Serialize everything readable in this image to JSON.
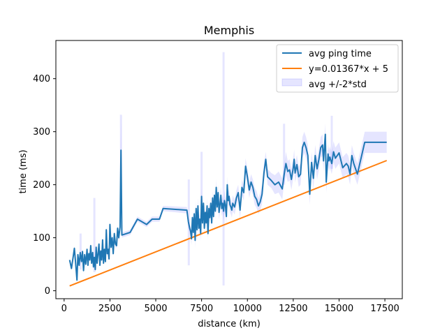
{
  "chart_data": {
    "type": "line",
    "title": "Memphis",
    "xlabel": "distance (km)",
    "ylabel": "time (ms)",
    "xlim": [
      -450,
      18450
    ],
    "ylim": [
      -15,
      472
    ],
    "xticks": [
      0,
      2500,
      5000,
      7500,
      10000,
      12500,
      15000,
      17500
    ],
    "xtick_labels": [
      "0",
      "2500",
      "5000",
      "7500",
      "10000",
      "12500",
      "15000",
      "17500"
    ],
    "yticks": [
      0,
      100,
      200,
      300,
      400
    ],
    "ytick_labels": [
      "0",
      "100",
      "200",
      "300",
      "400"
    ],
    "grid": false,
    "legend_position": "top-right",
    "colors": {
      "avg": "#1f77b4",
      "fit": "#ff7f0e",
      "band": "#0000ff"
    },
    "series": [
      {
        "name": "avg ping time",
        "x": [
          300,
          400,
          500,
          560,
          620,
          700,
          750,
          820,
          880,
          950,
          1000,
          1060,
          1120,
          1180,
          1250,
          1300,
          1350,
          1400,
          1450,
          1500,
          1560,
          1600,
          1650,
          1700,
          1750,
          1800,
          1850,
          1900,
          1950,
          2000,
          2050,
          2100,
          2150,
          2200,
          2250,
          2300,
          2350,
          2400,
          2450,
          2500,
          2560,
          2620,
          2680,
          2740,
          2800,
          2860,
          2920,
          2980,
          3050,
          3100,
          3150,
          3600,
          4000,
          4500,
          4800,
          5200,
          5400,
          6700,
          6780,
          6850,
          6900,
          6950,
          7000,
          7050,
          7100,
          7150,
          7200,
          7250,
          7300,
          7350,
          7400,
          7450,
          7500,
          7550,
          7600,
          7650,
          7700,
          7750,
          7800,
          7850,
          7900,
          7950,
          8000,
          8050,
          8100,
          8150,
          8200,
          8250,
          8300,
          8350,
          8400,
          8450,
          8500,
          8550,
          8600,
          8650,
          8700,
          8750,
          8800,
          8850,
          8900,
          8950,
          9000,
          9050,
          9100,
          9150,
          9200,
          9300,
          9400,
          9500,
          9600,
          9700,
          9800,
          9900,
          10000,
          10100,
          10200,
          10300,
          10400,
          10500,
          10600,
          10700,
          10800,
          10900,
          11000,
          11100,
          11300,
          11500,
          11700,
          11900,
          12000,
          12100,
          12200,
          12300,
          12400,
          12500,
          12550,
          12600,
          12700,
          12800,
          12900,
          13000,
          13100,
          13200,
          13300,
          13400,
          13500,
          13600,
          13700,
          13800,
          13900,
          14000,
          14100,
          14150,
          14250,
          14300,
          14400,
          14450,
          14500,
          14600,
          14700,
          14800,
          15000,
          15200,
          15400,
          15500,
          15600,
          15700,
          15800,
          16000,
          16400,
          17600
        ],
        "values": [
          58,
          42,
          65,
          80,
          55,
          20,
          68,
          48,
          72,
          55,
          74,
          38,
          68,
          50,
          78,
          48,
          70,
          58,
          85,
          52,
          72,
          45,
          63,
          40,
          82,
          52,
          70,
          88,
          48,
          75,
          58,
          96,
          52,
          78,
          55,
          115,
          70,
          78,
          60,
          125,
          82,
          100,
          70,
          108,
          88,
          85,
          118,
          100,
          120,
          265,
          105,
          110,
          135,
          125,
          135,
          135,
          155,
          152,
          130,
          118,
          112,
          98,
          138,
          110,
          145,
          95,
          155,
          115,
          160,
          118,
          135,
          108,
          178,
          128,
          165,
          118,
          148,
          128,
          160,
          108,
          155,
          138,
          165,
          128,
          175,
          140,
          180,
          150,
          195,
          158,
          185,
          148,
          162,
          180,
          155,
          165,
          150,
          170,
          160,
          140,
          200,
          170,
          178,
          162,
          158,
          152,
          165,
          158,
          175,
          185,
          152,
          195,
          185,
          235,
          215,
          190,
          205,
          195,
          178,
          172,
          160,
          168,
          182,
          222,
          248,
          215,
          208,
          200,
          205,
          192,
          218,
          240,
          225,
          228,
          210,
          232,
          248,
          222,
          238,
          215,
          220,
          270,
          280,
          270,
          255,
          182,
          242,
          212,
          255,
          230,
          248,
          270,
          275,
          245,
          295,
          205,
          258,
          245,
          252,
          240,
          262,
          250,
          260,
          232,
          240,
          235,
          220,
          255,
          240,
          220,
          280,
          280
        ],
        "band_upper": [
          60,
          45,
          70,
          85,
          58,
          24,
          72,
          52,
          78,
          60,
          80,
          44,
          75,
          55,
          82,
          52,
          76,
          62,
          90,
          56,
          78,
          50,
          70,
          46,
          88,
          56,
          76,
          92,
          52,
          80,
          62,
          102,
          58,
          84,
          60,
          122,
          76,
          84,
          65,
          132,
          88,
          106,
          76,
          112,
          94,
          90,
          124,
          108,
          128,
          330,
          110,
          115,
          140,
          130,
          140,
          140,
          160,
          158,
          140,
          128,
          122,
          110,
          150,
          122,
          158,
          110,
          170,
          130,
          175,
          130,
          150,
          122,
          192,
          140,
          180,
          130,
          162,
          140,
          175,
          120,
          170,
          150,
          180,
          140,
          190,
          152,
          196,
          165,
          210,
          172,
          200,
          162,
          178,
          196,
          170,
          180,
          168,
          190,
          175,
          155,
          215,
          185,
          192,
          176,
          172,
          166,
          180,
          172,
          190,
          200,
          168,
          210,
          200,
          250,
          230,
          205,
          220,
          210,
          194,
          188,
          175,
          185,
          200,
          240,
          262,
          230,
          222,
          218,
          225,
          212,
          235,
          262,
          245,
          248,
          230,
          252,
          266,
          240,
          256,
          234,
          240,
          290,
          300,
          290,
          275,
          202,
          262,
          232,
          275,
          250,
          268,
          290,
          295,
          265,
          315,
          225,
          278,
          265,
          272,
          260,
          282,
          270,
          280,
          252,
          260,
          255,
          240,
          275,
          260,
          240,
          300,
          300
        ],
        "band_lower": [
          56,
          40,
          60,
          75,
          52,
          16,
          64,
          44,
          66,
          50,
          68,
          32,
          62,
          45,
          74,
          44,
          64,
          54,
          80,
          48,
          66,
          40,
          56,
          34,
          76,
          48,
          64,
          84,
          44,
          70,
          54,
          90,
          46,
          72,
          50,
          108,
          64,
          72,
          55,
          118,
          76,
          94,
          64,
          104,
          82,
          80,
          112,
          92,
          112,
          200,
          100,
          105,
          130,
          120,
          130,
          130,
          150,
          146,
          120,
          108,
          102,
          86,
          126,
          98,
          132,
          80,
          140,
          100,
          145,
          106,
          120,
          94,
          164,
          116,
          150,
          106,
          134,
          116,
          145,
          96,
          140,
          126,
          150,
          116,
          160,
          128,
          164,
          135,
          180,
          144,
          170,
          134,
          146,
          164,
          140,
          150,
          132,
          150,
          145,
          125,
          185,
          155,
          164,
          148,
          144,
          138,
          150,
          144,
          160,
          170,
          136,
          180,
          170,
          220,
          200,
          175,
          190,
          180,
          162,
          156,
          145,
          151,
          164,
          204,
          234,
          200,
          194,
          182,
          185,
          172,
          201,
          218,
          205,
          208,
          190,
          212,
          230,
          204,
          220,
          196,
          200,
          250,
          260,
          250,
          235,
          162,
          222,
          192,
          235,
          210,
          228,
          250,
          255,
          225,
          275,
          185,
          238,
          225,
          232,
          220,
          242,
          230,
          240,
          212,
          220,
          215,
          200,
          235,
          220,
          200,
          260,
          260
        ],
        "spikes": [
          {
            "x": 900,
            "low": 40,
            "high": 108
          },
          {
            "x": 1650,
            "low": 35,
            "high": 175
          },
          {
            "x": 3100,
            "low": 195,
            "high": 332
          },
          {
            "x": 6800,
            "low": 48,
            "high": 210
          },
          {
            "x": 7500,
            "low": 150,
            "high": 262
          },
          {
            "x": 8700,
            "low": 10,
            "high": 450
          },
          {
            "x": 12000,
            "low": 200,
            "high": 315
          },
          {
            "x": 14600,
            "low": 230,
            "high": 330
          }
        ]
      },
      {
        "name": "y=0.01367*x + 5",
        "x": [
          300,
          17600
        ],
        "values": [
          9.1,
          245.6
        ]
      }
    ],
    "legend": [
      "avg ping time",
      "y=0.01367*x + 5",
      "avg +/-2*std"
    ]
  }
}
